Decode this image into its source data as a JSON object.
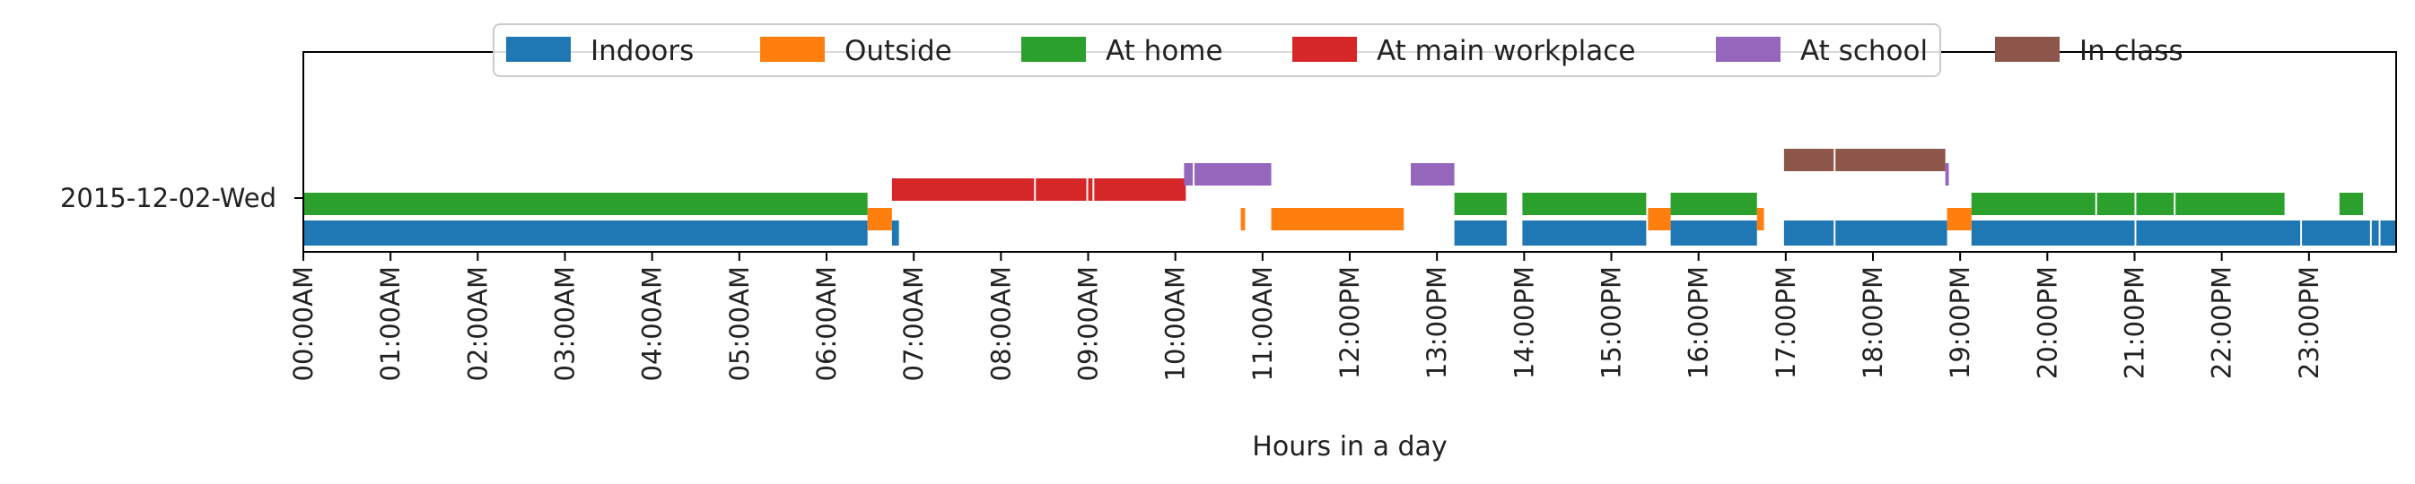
{
  "chart_data": {
    "type": "timeline",
    "title": "",
    "xlabel": "Hours in a day",
    "ylabel": "",
    "xlim": [
      0,
      24
    ],
    "y_categories": [
      "2015-12-02-Wed"
    ],
    "x_tick_labels": [
      "00:00AM",
      "01:00AM",
      "02:00AM",
      "03:00AM",
      "04:00AM",
      "05:00AM",
      "06:00AM",
      "07:00AM",
      "08:00AM",
      "09:00AM",
      "10:00AM",
      "11:00AM",
      "12:00PM",
      "13:00PM",
      "14:00PM",
      "15:00PM",
      "16:00PM",
      "17:00PM",
      "18:00PM",
      "19:00PM",
      "20:00PM",
      "21:00PM",
      "22:00PM",
      "23:00PM"
    ],
    "legend_position": "top-center",
    "series": [
      {
        "name": "Indoors",
        "color": "#1f77b4",
        "segments": [
          [
            0,
            6.47
          ],
          [
            6.75,
            6.83
          ],
          [
            13.2,
            13.8
          ],
          [
            13.98,
            15.4
          ],
          [
            15.68,
            16.67
          ],
          [
            16.98,
            17.55
          ],
          [
            17.57,
            18.85
          ],
          [
            19.13,
            21.0
          ],
          [
            21.02,
            22.9
          ],
          [
            22.92,
            23.7
          ],
          [
            23.72,
            23.8
          ],
          [
            23.82,
            24.0
          ]
        ]
      },
      {
        "name": "Outside",
        "color": "#ff7f0e",
        "segments": [
          [
            6.47,
            6.75
          ],
          [
            10.75,
            10.8
          ],
          [
            11.1,
            12.62
          ],
          [
            15.42,
            15.68
          ],
          [
            16.67,
            16.75
          ],
          [
            18.85,
            19.13
          ]
        ]
      },
      {
        "name": "At home",
        "color": "#2ca02c",
        "segments": [
          [
            0,
            6.47
          ],
          [
            13.2,
            13.8
          ],
          [
            13.98,
            15.4
          ],
          [
            15.68,
            16.67
          ],
          [
            19.13,
            20.55
          ],
          [
            20.57,
            21.0
          ],
          [
            21.02,
            21.45
          ],
          [
            21.47,
            22.72
          ],
          [
            23.35,
            23.62
          ]
        ]
      },
      {
        "name": "At main workplace",
        "color": "#d62728",
        "segments": [
          [
            6.75,
            8.38
          ],
          [
            8.4,
            8.98
          ],
          [
            9.0,
            9.05
          ],
          [
            9.07,
            10.12
          ]
        ]
      },
      {
        "name": "At school",
        "color": "#9467bd",
        "segments": [
          [
            10.1,
            10.2
          ],
          [
            10.22,
            11.1
          ],
          [
            12.7,
            13.2
          ],
          [
            18.83,
            18.87
          ]
        ]
      },
      {
        "name": "In class",
        "color": "#8c564b",
        "segments": [
          [
            16.98,
            17.55
          ],
          [
            17.57,
            18.83
          ]
        ]
      }
    ]
  }
}
